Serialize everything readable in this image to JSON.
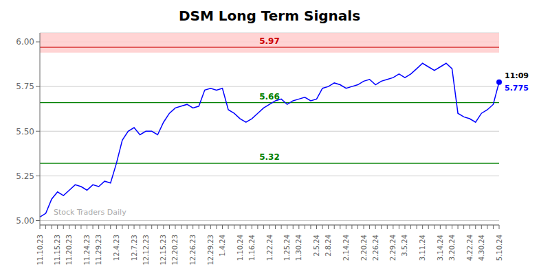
{
  "chart_data": {
    "type": "line",
    "title": "DSM Long Term Signals",
    "watermark": "Stock Traders Daily",
    "color": "blue",
    "grid": true,
    "ylim": [
      4.975,
      6.05
    ],
    "yticks": [
      {
        "value": 5.0,
        "label": "5.00"
      },
      5.25,
      {
        "value": 5.5,
        "label": "5.50"
      },
      5.75,
      {
        "value": 6.0,
        "label": "6.00"
      }
    ],
    "categories": [
      "11.10.23",
      null,
      null,
      "11.15.23",
      null,
      "11.20.23",
      null,
      null,
      "11.24.23",
      null,
      "11.29.23",
      null,
      null,
      "12.4.23",
      null,
      null,
      "12.7.23",
      null,
      "12.12.23",
      null,
      null,
      "12.15.23",
      null,
      "12.20.23",
      null,
      null,
      "12.26.23",
      null,
      null,
      "12.29.23",
      null,
      "1.4.24",
      null,
      null,
      "1.10.24",
      null,
      "1.16.24",
      null,
      null,
      "1.22.24",
      null,
      null,
      "1.25.24",
      null,
      "1.30.24",
      null,
      null,
      "2.5.24",
      null,
      "2.8.24",
      null,
      null,
      "2.14.24",
      null,
      null,
      "2.20.24",
      null,
      "2.26.24",
      null,
      null,
      "2.29.24",
      null,
      "3.5.24",
      null,
      null,
      "3.11.24",
      null,
      null,
      "3.14.24",
      null,
      "3.20.24",
      null,
      null,
      "4.22.24",
      null,
      "4.30.24",
      null,
      null,
      "5.10.24"
    ],
    "values": [
      5.02,
      5.04,
      5.12,
      5.16,
      5.14,
      5.17,
      5.2,
      5.19,
      5.17,
      5.2,
      5.19,
      5.22,
      5.21,
      5.32,
      5.45,
      5.5,
      5.52,
      5.48,
      5.5,
      5.5,
      5.48,
      5.55,
      5.6,
      5.63,
      5.64,
      5.65,
      5.63,
      5.64,
      5.73,
      5.74,
      5.73,
      5.74,
      5.62,
      5.6,
      5.57,
      5.55,
      5.57,
      5.6,
      5.63,
      5.65,
      5.67,
      5.68,
      5.65,
      5.67,
      5.68,
      5.69,
      5.67,
      5.68,
      5.74,
      5.75,
      5.77,
      5.76,
      5.74,
      5.75,
      5.76,
      5.78,
      5.79,
      5.76,
      5.78,
      5.79,
      5.8,
      5.82,
      5.8,
      5.82,
      5.85,
      5.88,
      5.86,
      5.84,
      5.86,
      5.88,
      5.85,
      5.6,
      5.58,
      5.57,
      5.55,
      5.6,
      5.62,
      5.65,
      5.775
    ],
    "band": {
      "from": 5.94,
      "to": 6.05,
      "color": "#ffcccc"
    },
    "reference_lines": [
      {
        "value": 5.97,
        "label": "5.97",
        "color": "#cc0000"
      },
      {
        "value": 5.66,
        "label": "5.66",
        "color": "green"
      },
      {
        "value": 5.32,
        "label": "5.32",
        "color": "green"
      }
    ],
    "annotations": [
      {
        "text": "11:09",
        "color": "black"
      },
      {
        "text": "5.775",
        "color": "blue"
      }
    ]
  }
}
